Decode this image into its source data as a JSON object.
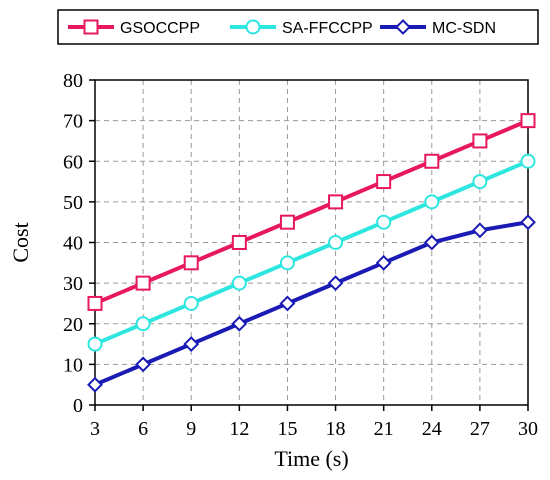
{
  "chart_data": {
    "type": "line",
    "title": "",
    "xlabel": "Time (s)",
    "ylabel": "Cost",
    "x": [
      3,
      6,
      9,
      12,
      15,
      18,
      21,
      24,
      27,
      30
    ],
    "xlim": [
      3,
      30
    ],
    "ylim": [
      0,
      80
    ],
    "xticks": [
      "3",
      "6",
      "9",
      "12",
      "15",
      "18",
      "21",
      "24",
      "27",
      "30"
    ],
    "yticks": [
      "0",
      "10",
      "20",
      "30",
      "40",
      "50",
      "60",
      "70",
      "80"
    ],
    "grid": true,
    "legend_position": "top",
    "series": [
      {
        "name": "GSOCCPP",
        "color": "#e8185c",
        "marker": "square",
        "values": [
          25,
          30,
          35,
          40,
          45,
          50,
          55,
          60,
          65,
          70
        ]
      },
      {
        "name": "SA-FFCCPP",
        "color": "#2ee6e0",
        "marker": "circle",
        "values": [
          15,
          20,
          25,
          30,
          35,
          40,
          45,
          50,
          55,
          60
        ]
      },
      {
        "name": "MC-SDN",
        "color": "#1a1ab4",
        "marker": "diamond",
        "values": [
          5,
          10,
          15,
          20,
          25,
          30,
          35,
          40,
          43,
          45
        ]
      }
    ]
  }
}
